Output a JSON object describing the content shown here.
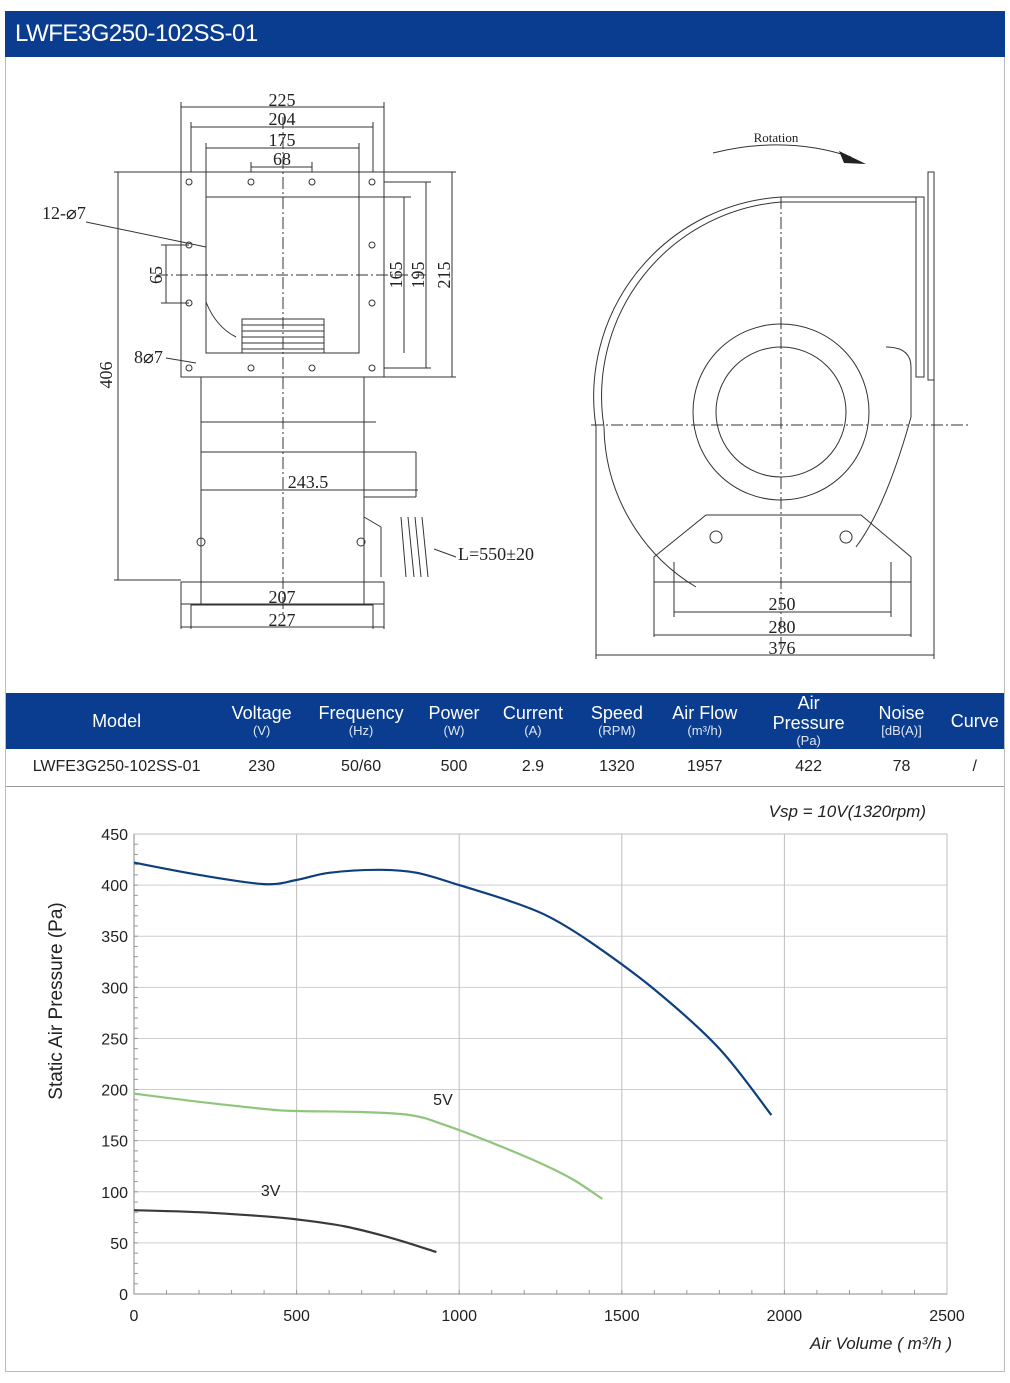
{
  "header": {
    "title": "LWFE3G250-102SS-01"
  },
  "drawing": {
    "dims": {
      "d225": "225",
      "d204": "204",
      "d175": "175",
      "d68": "68",
      "holes12": "12-⌀7",
      "d65": "65",
      "holes8": "8⌀7",
      "d406": "406",
      "d165": "165",
      "d195": "195",
      "d215": "215",
      "d243": "243.5",
      "d207": "207",
      "d227": "227",
      "cable": "L=550±20",
      "rotation": "Rotation",
      "d250": "250",
      "d280": "280",
      "d376": "376"
    }
  },
  "spec_table": {
    "headers": [
      {
        "label": "Model",
        "unit": ""
      },
      {
        "label": "Voltage",
        "unit": "(V)"
      },
      {
        "label": "Frequency",
        "unit": "(Hz)"
      },
      {
        "label": "Power",
        "unit": "(W)"
      },
      {
        "label": "Current",
        "unit": "(A)"
      },
      {
        "label": "Speed",
        "unit": "(RPM)"
      },
      {
        "label": "Air Flow",
        "unit": "(m³/h)"
      },
      {
        "label": "Air Pressure",
        "unit": "(Pa)"
      },
      {
        "label": "Noise",
        "unit": "[dB(A)]"
      },
      {
        "label": "Curve",
        "unit": ""
      }
    ],
    "row": [
      "LWFE3G250-102SS-01",
      "230",
      "50/60",
      "500",
      "2.9",
      "1320",
      "1957",
      "422",
      "78",
      "/"
    ]
  },
  "chart_data": {
    "type": "line",
    "subtitle": "Vsp = 10V(1320rpm)",
    "xlabel": "Air Volume ( m³/h )",
    "ylabel": "Static Air Pressure  (Pa)",
    "xlim": [
      0,
      2500
    ],
    "ylim": [
      0,
      450
    ],
    "xticks": [
      0,
      500,
      1000,
      1500,
      2000,
      2500
    ],
    "yticks": [
      0,
      50,
      100,
      150,
      200,
      250,
      300,
      350,
      400,
      450
    ],
    "grid": true,
    "series": [
      {
        "name": "",
        "color": "#0d3f7e",
        "points": [
          [
            0,
            422
          ],
          [
            200,
            410
          ],
          [
            400,
            401
          ],
          [
            500,
            405
          ],
          [
            600,
            412
          ],
          [
            750,
            415
          ],
          [
            870,
            412
          ],
          [
            1000,
            400
          ],
          [
            1150,
            385
          ],
          [
            1270,
            370
          ],
          [
            1400,
            345
          ],
          [
            1600,
            298
          ],
          [
            1800,
            240
          ],
          [
            1960,
            175
          ]
        ]
      },
      {
        "name": "5V",
        "color": "#90c57e",
        "points": [
          [
            0,
            196
          ],
          [
            200,
            188
          ],
          [
            400,
            181
          ],
          [
            500,
            179
          ],
          [
            700,
            178
          ],
          [
            850,
            175
          ],
          [
            950,
            166
          ],
          [
            1100,
            148
          ],
          [
            1250,
            128
          ],
          [
            1350,
            112
          ],
          [
            1440,
            93
          ]
        ]
      },
      {
        "name": "3V",
        "color": "#3a3a3a",
        "points": [
          [
            0,
            82
          ],
          [
            200,
            80
          ],
          [
            400,
            76
          ],
          [
            500,
            73
          ],
          [
            650,
            66
          ],
          [
            800,
            54
          ],
          [
            930,
            41
          ]
        ]
      }
    ],
    "annotations": [
      {
        "text": "5V",
        "x": 920,
        "y": 185
      },
      {
        "text": "3V",
        "x": 390,
        "y": 96
      }
    ]
  }
}
